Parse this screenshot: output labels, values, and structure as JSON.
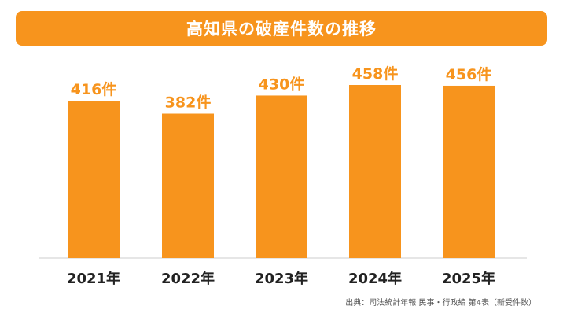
{
  "chart_data": {
    "type": "bar",
    "title": "高知県の破産件数の推移",
    "categories": [
      "2021年",
      "2022年",
      "2023年",
      "2024年",
      "2025年"
    ],
    "values": [
      416,
      382,
      430,
      458,
      456
    ],
    "value_labels": [
      "416件",
      "382件",
      "430件",
      "458件",
      "456件"
    ],
    "ylim": [
      0,
      480
    ],
    "grid": false,
    "bar_color": "#f7941d",
    "source": "出典：司法統計年報 民事・行政編 第4表（新受件数）"
  }
}
